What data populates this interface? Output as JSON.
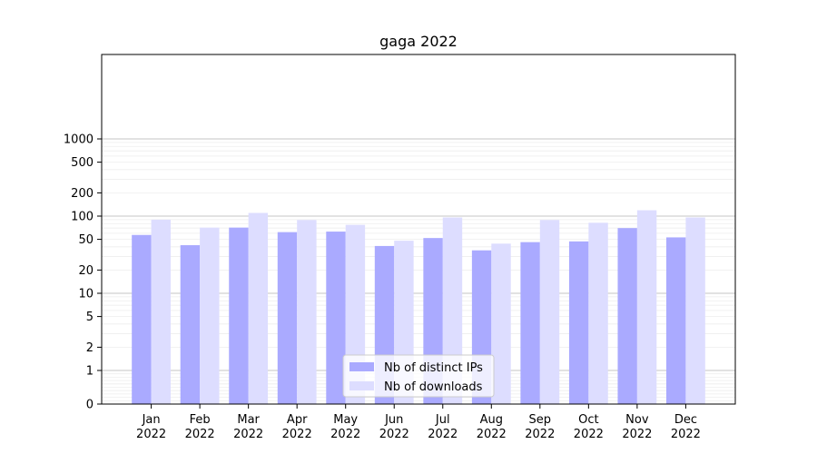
{
  "chart_data": {
    "type": "bar",
    "title": "gaga 2022",
    "xlabel": "",
    "ylabel": "",
    "y_scale": "symlog",
    "ylim": [
      0,
      1300
    ],
    "y_ticks": [
      0,
      1,
      2,
      5,
      10,
      20,
      50,
      100,
      200,
      500,
      1000
    ],
    "grid": true,
    "legend_position": "bottom-center",
    "categories": [
      [
        "Jan",
        "2022"
      ],
      [
        "Feb",
        "2022"
      ],
      [
        "Mar",
        "2022"
      ],
      [
        "Apr",
        "2022"
      ],
      [
        "May",
        "2022"
      ],
      [
        "Jun",
        "2022"
      ],
      [
        "Jul",
        "2022"
      ],
      [
        "Aug",
        "2022"
      ],
      [
        "Sep",
        "2022"
      ],
      [
        "Oct",
        "2022"
      ],
      [
        "Nov",
        "2022"
      ],
      [
        "Dec",
        "2022"
      ]
    ],
    "series": [
      {
        "name": "Nb of distinct IPs",
        "color": "#aaaaff",
        "values": [
          57,
          42,
          71,
          62,
          63,
          41,
          52,
          36,
          46,
          47,
          70,
          53
        ]
      },
      {
        "name": "Nb of downloads",
        "color": "#ddddff",
        "values": [
          90,
          71,
          110,
          89,
          77,
          48,
          96,
          44,
          89,
          82,
          119,
          96
        ]
      }
    ]
  }
}
